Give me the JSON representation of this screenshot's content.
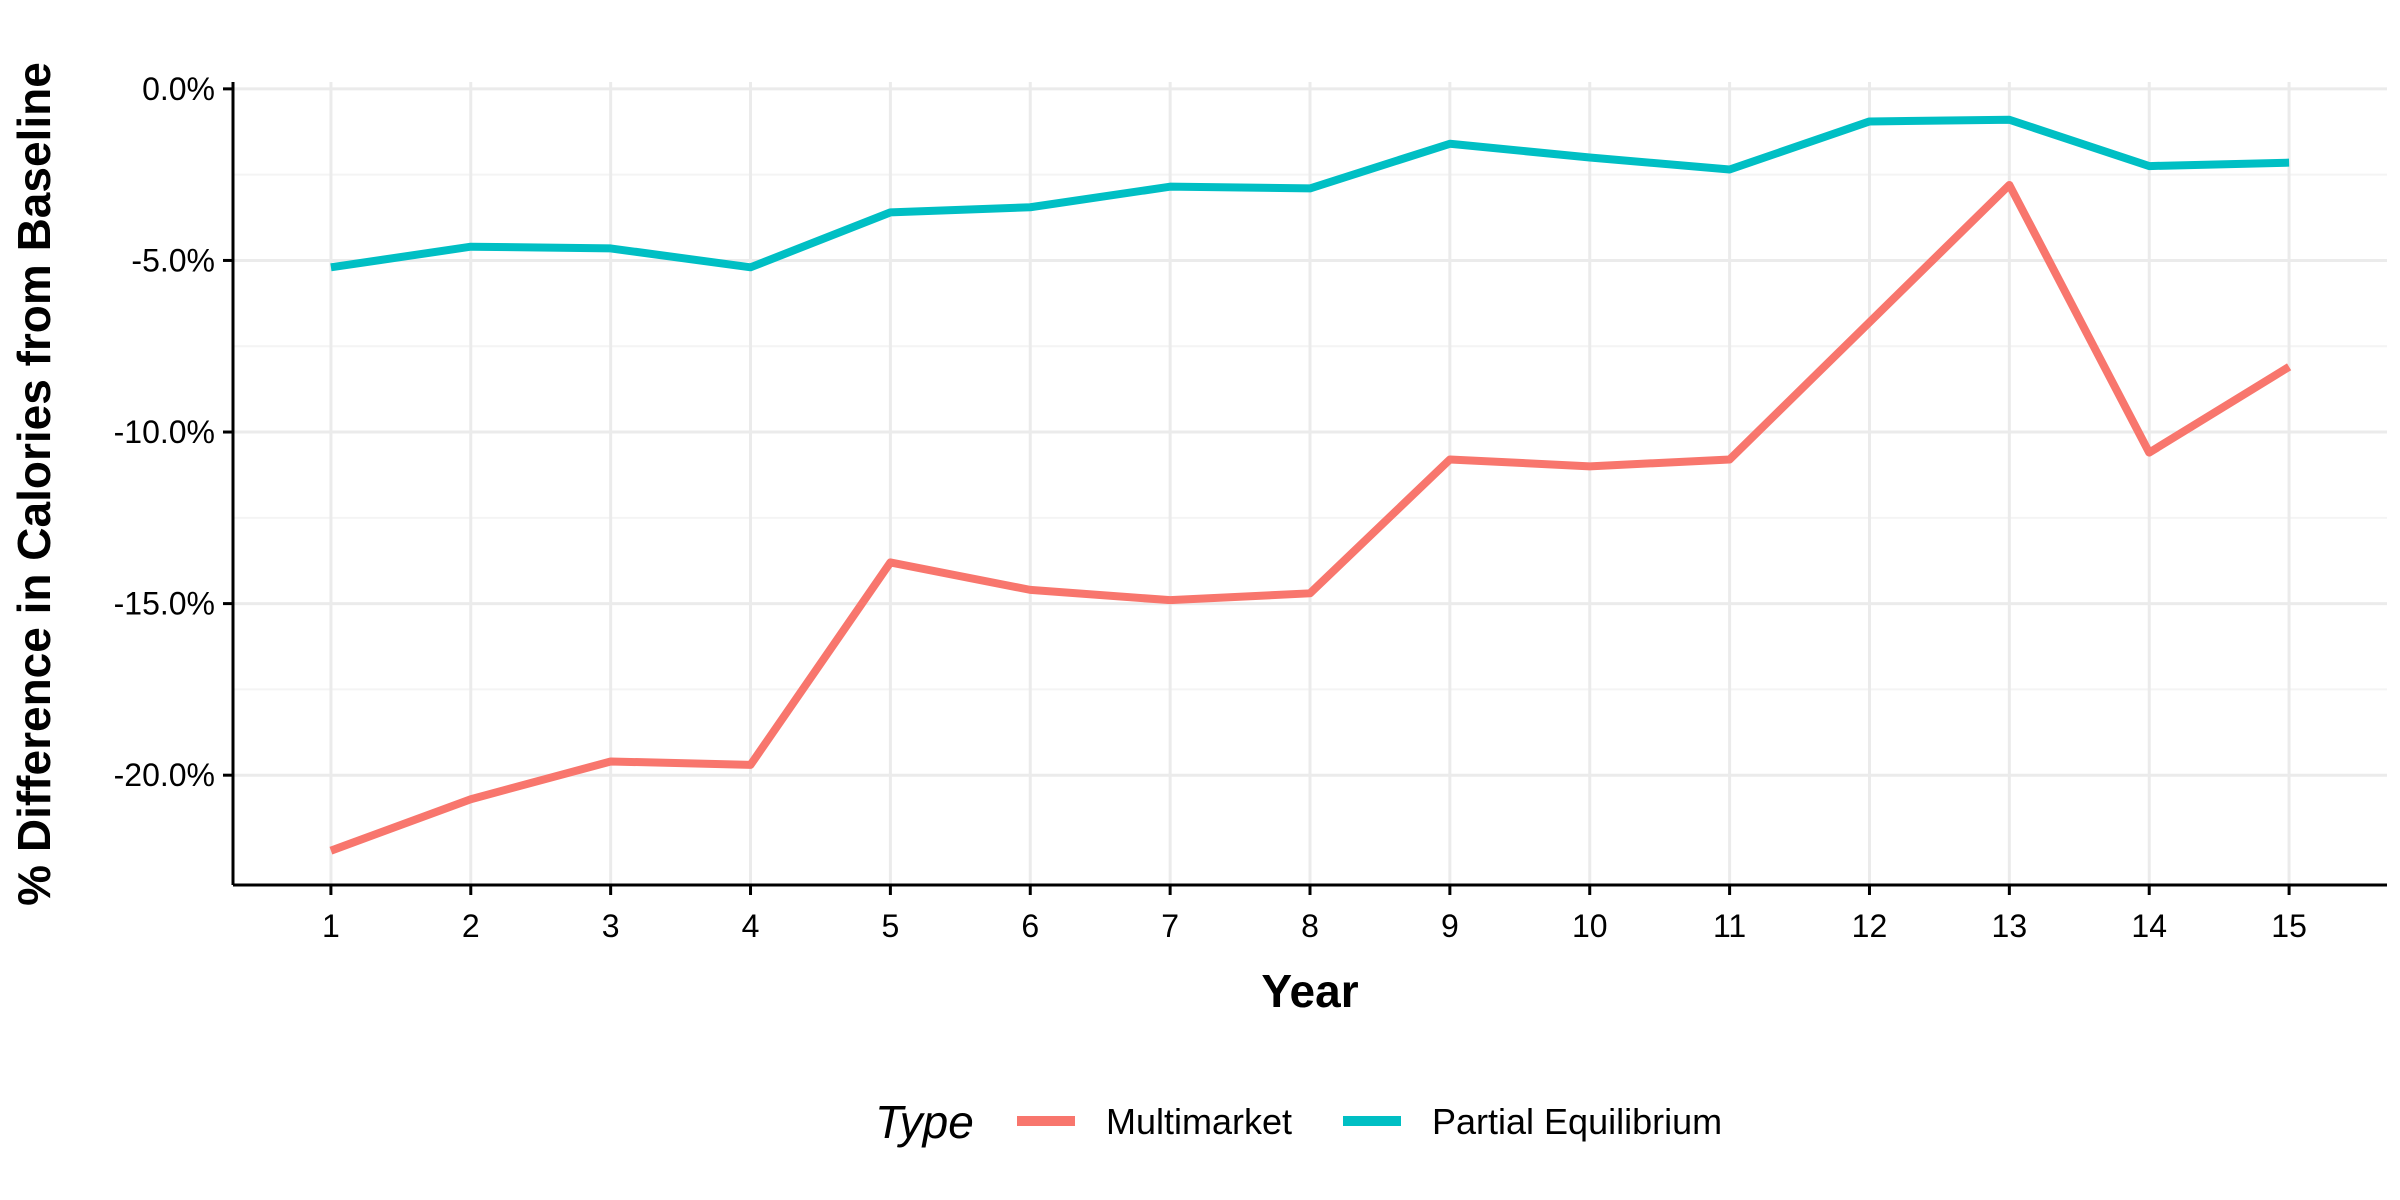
{
  "chart_data": {
    "type": "line",
    "title": "",
    "xlabel": "Year",
    "ylabel": "% Difference in Calories from Baseline",
    "x": [
      1,
      2,
      3,
      4,
      5,
      6,
      7,
      8,
      9,
      10,
      11,
      12,
      13,
      14,
      15
    ],
    "xlim": [
      0.3,
      15.7
    ],
    "ylim": [
      -23.2,
      0.2
    ],
    "y_ticks": [
      0,
      -5,
      -10,
      -15,
      -20
    ],
    "y_tick_labels": [
      "0.0%",
      "-5.0%",
      "-10.0%",
      "-15.0%",
      "-20.0%"
    ],
    "x_tick_labels": [
      "1",
      "2",
      "3",
      "4",
      "5",
      "6",
      "7",
      "8",
      "9",
      "10",
      "11",
      "12",
      "13",
      "14",
      "15"
    ],
    "grid": true,
    "legend": {
      "title": "Type",
      "position": "bottom"
    },
    "series": [
      {
        "name": "Multimarket",
        "color": "#F8766D",
        "values": [
          -22.2,
          -20.7,
          -19.6,
          -19.7,
          -13.8,
          -14.6,
          -14.9,
          -14.7,
          -10.8,
          -11.0,
          -10.8,
          -6.8,
          -2.8,
          -10.6,
          -8.1
        ]
      },
      {
        "name": "Partial Equilibrium",
        "color": "#00BFC4",
        "values": [
          -5.2,
          -4.6,
          -4.65,
          -5.2,
          -3.6,
          -3.45,
          -2.85,
          -2.9,
          -1.6,
          -2.0,
          -2.35,
          -0.95,
          -0.9,
          -2.25,
          -2.15
        ]
      }
    ]
  }
}
